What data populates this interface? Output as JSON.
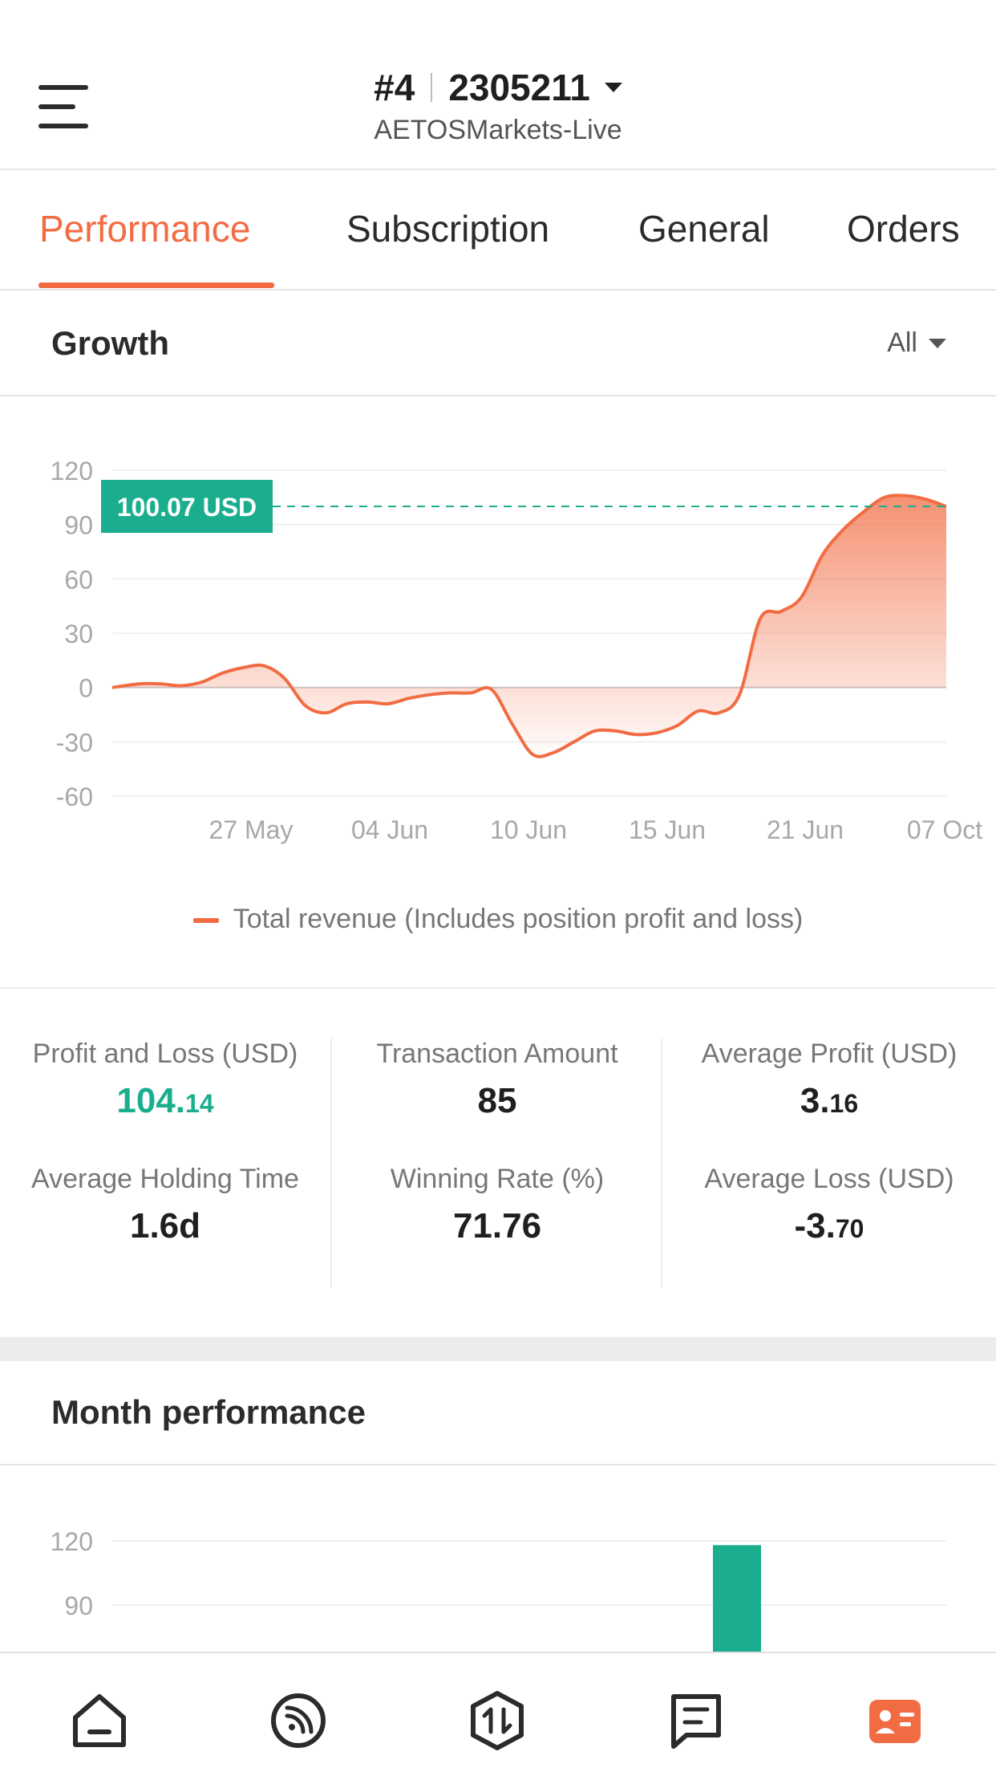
{
  "header": {
    "account_number": "#4",
    "account_id": "2305211",
    "server": "AETOSMarkets-Live",
    "menu_icon": "hamburger-menu-icon"
  },
  "tabs": [
    {
      "label": "Performance",
      "active": true
    },
    {
      "label": "Subscription",
      "active": false
    },
    {
      "label": "General",
      "active": false
    },
    {
      "label": "Orders",
      "active": false
    }
  ],
  "growth": {
    "title": "Growth",
    "filter": "All",
    "price_tag": "100.07 USD"
  },
  "chart_data": [
    {
      "type": "area",
      "title": "Growth",
      "x_ticks": [
        "27 May",
        "04 Jun",
        "10 Jun",
        "15 Jun",
        "21 Jun",
        "07 Oct"
      ],
      "y_ticks": [
        120,
        90,
        60,
        30,
        0,
        -30,
        -60
      ],
      "ylim": [
        -60,
        120
      ],
      "current_value": 100.07,
      "current_label": "100.07 USD",
      "series": [
        {
          "name": "Total revenue (Includes position profit and loss)",
          "color": "#f26c43",
          "x_index": [
            0,
            0.4,
            0.7,
            1.0,
            1.3,
            1.6,
            1.9,
            2.2,
            2.5,
            2.8,
            3.1,
            3.4,
            3.7,
            4.0,
            4.3,
            4.6,
            4.9,
            5.2,
            5.5,
            5.8,
            6.1,
            6.4,
            6.7,
            7.0,
            7.3,
            7.6,
            7.9,
            8.2,
            8.5,
            8.8,
            9.1,
            9.4,
            9.7,
            10.0,
            10.3,
            10.6,
            10.9,
            11.2,
            11.5,
            11.8,
            12.1
          ],
          "values": [
            0,
            2,
            2,
            1,
            3,
            8,
            11,
            12,
            5,
            -10,
            -14,
            -9,
            -8,
            -9,
            -6,
            -4,
            -3,
            -3,
            -1,
            -20,
            -37,
            -36,
            -30,
            -24,
            -24,
            -26,
            -25,
            -21,
            -13,
            -14,
            -4,
            38,
            42,
            50,
            73,
            87,
            97,
            105,
            106,
            104,
            100
          ]
        }
      ],
      "legend_position": "bottom",
      "grid": true
    },
    {
      "type": "bar",
      "title": "Month performance",
      "y_ticks": [
        120,
        90
      ],
      "bars": [
        {
          "value": 118,
          "color": "#1aae8f"
        }
      ]
    }
  ],
  "stats": {
    "pnl_label": "Profit and Loss (USD)",
    "pnl_int": "104.",
    "pnl_dec": "14",
    "tx_label": "Transaction Amount",
    "tx_value": "85",
    "avg_profit_label": "Average Profit (USD)",
    "avg_profit_int": "3.",
    "avg_profit_dec": "16",
    "hold_label": "Average Holding Time",
    "hold_value": "1.6d",
    "win_label": "Winning Rate (%)",
    "win_value": "71.76",
    "avg_loss_label": "Average Loss (USD)",
    "avg_loss_int": "-3.",
    "avg_loss_dec": "70"
  },
  "month": {
    "title": "Month performance"
  },
  "bottom_nav": [
    {
      "icon": "home-icon",
      "active": false
    },
    {
      "icon": "signal-feed-icon",
      "active": false
    },
    {
      "icon": "trade-icon",
      "active": false
    },
    {
      "icon": "message-icon",
      "active": false
    },
    {
      "icon": "profile-card-icon",
      "active": true
    }
  ],
  "colors": {
    "accent": "#f26c43",
    "green": "#1aae8f",
    "text": "#2b2b2b",
    "muted": "#777777"
  }
}
